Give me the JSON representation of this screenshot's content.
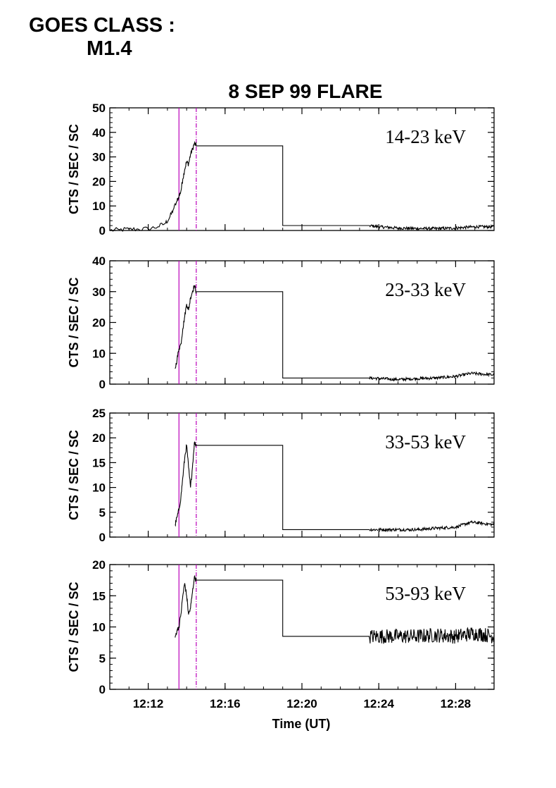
{
  "header": {
    "goes_label": "GOES CLASS :",
    "goes_value": "M1.4"
  },
  "chart_data": {
    "type": "line",
    "title": "8 SEP 99 FLARE",
    "xlabel": "Time (UT)",
    "ylabel": "CTS / SEC / SC",
    "x_unit": "minutes after 12:00 UT",
    "xlim": [
      10,
      30
    ],
    "xticks": [
      {
        "value": 12,
        "label": "12:12"
      },
      {
        "value": 16,
        "label": "12:16"
      },
      {
        "value": 20,
        "label": "12:20"
      },
      {
        "value": 24,
        "label": "12:24"
      },
      {
        "value": 28,
        "label": "12:28"
      }
    ],
    "vertical_lines": [
      {
        "x": 13.6,
        "style": "solid",
        "color": "#bb00bb"
      },
      {
        "x": 14.5,
        "style": "dash-dot",
        "color": "#bb00bb"
      }
    ],
    "grid": false,
    "panels": [
      {
        "band": "14-23 keV",
        "ylim": [
          0,
          50
        ],
        "yticks": [
          0,
          10,
          20,
          30,
          40,
          50
        ],
        "points": [
          [
            10.0,
            0.0
          ],
          [
            10.5,
            0.3
          ],
          [
            11.0,
            0.5
          ],
          [
            11.5,
            0.5
          ],
          [
            12.0,
            0.7
          ],
          [
            12.5,
            1.5
          ],
          [
            12.9,
            3.0
          ],
          [
            13.1,
            5.0
          ],
          [
            13.3,
            8.5
          ],
          [
            13.5,
            12.0
          ],
          [
            13.6,
            14.0
          ],
          [
            13.7,
            16.0
          ],
          [
            13.8,
            21.0
          ],
          [
            13.9,
            25.0
          ],
          [
            14.0,
            28.0
          ],
          [
            14.1,
            27.0
          ],
          [
            14.2,
            31.0
          ],
          [
            14.3,
            33.0
          ],
          [
            14.4,
            35.5
          ],
          [
            14.5,
            34.5
          ],
          [
            19.0,
            34.5
          ],
          [
            19.0,
            2.0
          ],
          [
            23.5,
            2.0
          ],
          [
            24.0,
            1.5
          ],
          [
            25.0,
            1.0
          ],
          [
            26.0,
            0.8
          ],
          [
            27.0,
            0.8
          ],
          [
            28.0,
            1.0
          ],
          [
            29.0,
            1.5
          ],
          [
            30.0,
            1.5
          ]
        ],
        "noisy_from": 23.5
      },
      {
        "band": "23-33 keV",
        "ylim": [
          0,
          40
        ],
        "yticks": [
          0,
          10,
          20,
          30,
          40
        ],
        "points": [
          [
            13.4,
            5.0
          ],
          [
            13.5,
            8.0
          ],
          [
            13.6,
            11.5
          ],
          [
            13.7,
            13.0
          ],
          [
            13.8,
            18.0
          ],
          [
            13.9,
            22.0
          ],
          [
            14.0,
            26.0
          ],
          [
            14.1,
            24.0
          ],
          [
            14.2,
            28.0
          ],
          [
            14.3,
            30.0
          ],
          [
            14.4,
            32.0
          ],
          [
            14.5,
            30.0
          ],
          [
            19.0,
            30.0
          ],
          [
            19.0,
            2.0
          ],
          [
            23.5,
            2.0
          ],
          [
            25.0,
            1.5
          ],
          [
            26.0,
            1.8
          ],
          [
            27.0,
            2.0
          ],
          [
            28.0,
            2.5
          ],
          [
            28.8,
            3.5
          ],
          [
            30.0,
            3.0
          ]
        ],
        "noisy_from": 23.5
      },
      {
        "band": "33-53 keV",
        "ylim": [
          0,
          25
        ],
        "yticks": [
          0,
          5,
          10,
          15,
          20,
          25
        ],
        "points": [
          [
            13.4,
            2.5
          ],
          [
            13.5,
            4.0
          ],
          [
            13.6,
            5.5
          ],
          [
            13.7,
            8.0
          ],
          [
            13.8,
            12.0
          ],
          [
            13.9,
            16.0
          ],
          [
            14.0,
            18.5
          ],
          [
            14.1,
            14.0
          ],
          [
            14.2,
            10.0
          ],
          [
            14.3,
            14.0
          ],
          [
            14.4,
            19.0
          ],
          [
            14.5,
            18.5
          ],
          [
            19.0,
            18.5
          ],
          [
            19.0,
            1.5
          ],
          [
            23.5,
            1.5
          ],
          [
            25.0,
            1.5
          ],
          [
            26.0,
            1.5
          ],
          [
            27.0,
            1.8
          ],
          [
            28.0,
            2.0
          ],
          [
            28.8,
            3.0
          ],
          [
            30.0,
            2.5
          ]
        ],
        "noisy_from": 23.5
      },
      {
        "band": "53-93 keV",
        "ylim": [
          0,
          20
        ],
        "yticks": [
          0,
          5,
          10,
          15,
          20
        ],
        "points": [
          [
            13.4,
            8.3
          ],
          [
            13.5,
            9.5
          ],
          [
            13.6,
            10.0
          ],
          [
            13.7,
            12.0
          ],
          [
            13.8,
            15.0
          ],
          [
            13.9,
            17.0
          ],
          [
            14.0,
            15.0
          ],
          [
            14.1,
            12.0
          ],
          [
            14.2,
            13.0
          ],
          [
            14.3,
            15.5
          ],
          [
            14.4,
            18.0
          ],
          [
            14.5,
            17.5
          ],
          [
            19.0,
            17.5
          ],
          [
            19.0,
            8.5
          ],
          [
            23.5,
            8.5
          ],
          [
            25.0,
            8.5
          ],
          [
            26.0,
            8.5
          ],
          [
            27.0,
            8.7
          ],
          [
            28.0,
            8.5
          ],
          [
            29.0,
            9.0
          ],
          [
            30.0,
            8.5
          ]
        ],
        "noisy_from": 23.5
      }
    ]
  }
}
